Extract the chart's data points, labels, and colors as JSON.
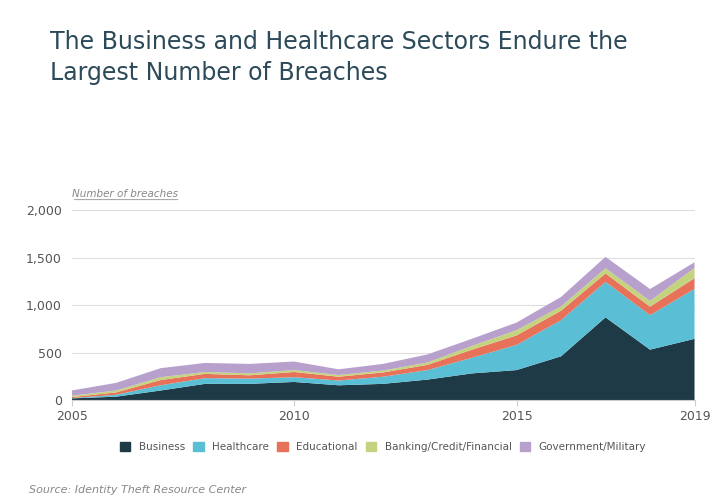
{
  "title": "The Business and Healthcare Sectors Endure the\nLargest Number of Breaches",
  "ylabel": "Number of breaches",
  "source": "Source: Identity Theft Resource Center",
  "years": [
    2005,
    2006,
    2007,
    2008,
    2009,
    2010,
    2011,
    2012,
    2013,
    2014,
    2015,
    2016,
    2017,
    2018,
    2019
  ],
  "business": [
    17,
    35,
    100,
    170,
    170,
    190,
    155,
    170,
    215,
    280,
    315,
    460,
    870,
    530,
    644
  ],
  "healthcare": [
    3,
    20,
    55,
    60,
    55,
    50,
    50,
    75,
    100,
    165,
    265,
    380,
    374,
    363,
    525
  ],
  "educational": [
    10,
    25,
    55,
    45,
    35,
    55,
    40,
    45,
    55,
    85,
    100,
    100,
    88,
    90,
    113
  ],
  "banking": [
    15,
    20,
    30,
    20,
    20,
    20,
    18,
    20,
    25,
    40,
    55,
    45,
    55,
    60,
    108
  ],
  "government": [
    55,
    80,
    95,
    95,
    100,
    90,
    60,
    70,
    85,
    75,
    80,
    100,
    120,
    125,
    60
  ],
  "colors": {
    "business": "#1e3a47",
    "healthcare": "#5abed4",
    "educational": "#e8715a",
    "banking": "#c4d47e",
    "government": "#b8a0cc"
  },
  "ylim": [
    0,
    2000
  ],
  "yticks": [
    0,
    500,
    1000,
    1500,
    2000
  ],
  "xticks": [
    2005,
    2010,
    2015,
    2019
  ],
  "background_color": "#ffffff",
  "title_color": "#2c4a5a",
  "title_fontsize": 17,
  "label_fontsize": 9,
  "source_fontsize": 8,
  "legend_labels": [
    "Business",
    "Healthcare",
    "Educational",
    "Banking/Credit/Financial",
    "Government/Military"
  ]
}
